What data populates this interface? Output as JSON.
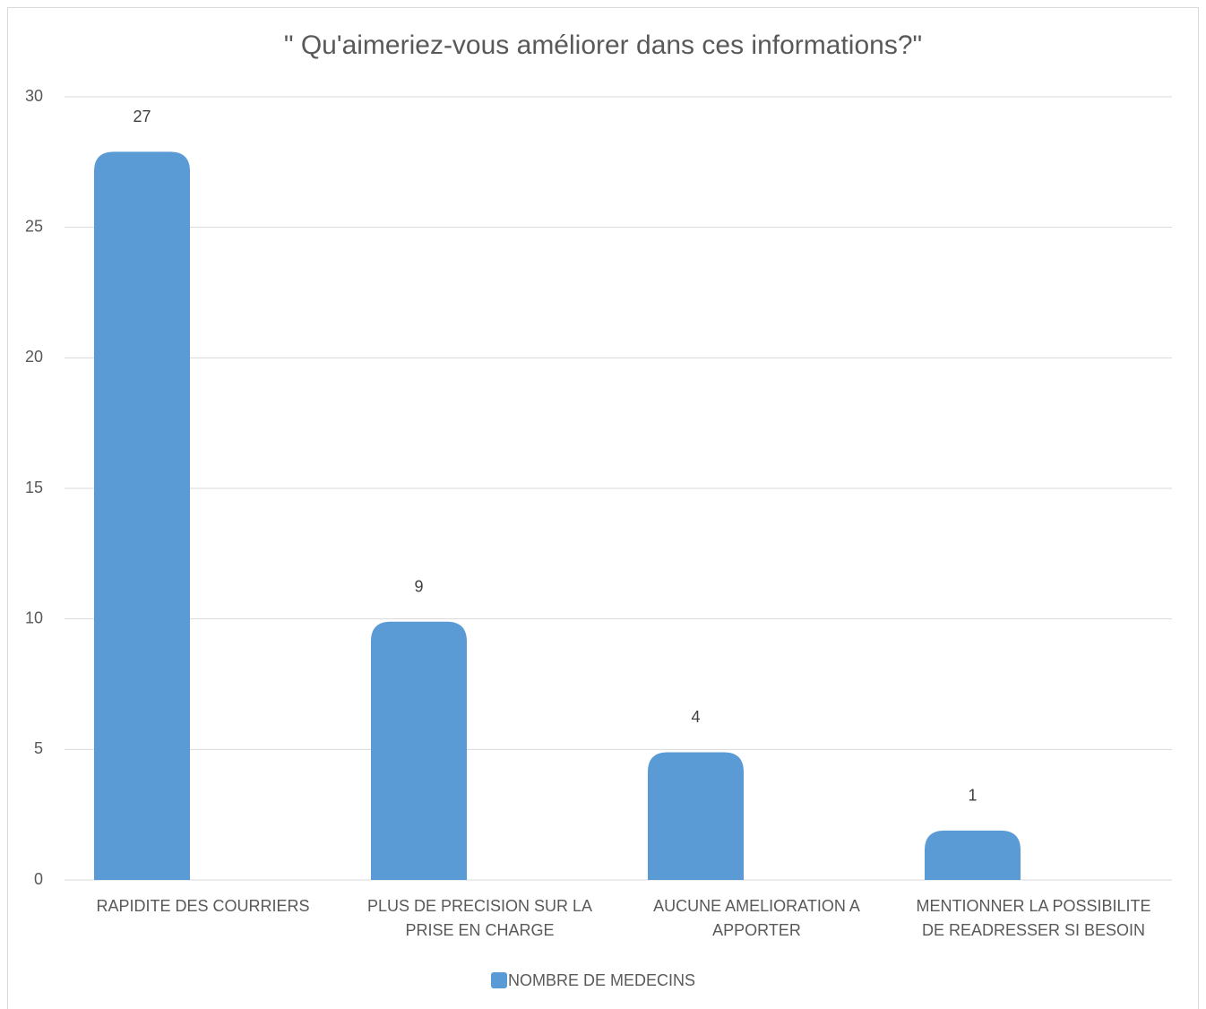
{
  "chart_data": {
    "type": "bar",
    "title": "\" Qu'aimeriez-vous améliorer dans ces informations?\"",
    "categories": [
      "RAPIDITE DES COURRIERS",
      "PLUS DE PRECISION SUR LA PRISE EN CHARGE",
      "AUCUNE AMELIORATION A APPORTER",
      "MENTIONNER LA POSSIBILITE DE READRESSER SI BESOIN"
    ],
    "series": [
      {
        "name": "NOMBRE DE MEDECINS",
        "color": "#5b9bd5",
        "values": [
          27,
          9,
          4,
          1
        ]
      }
    ],
    "ylim": [
      0,
      30
    ],
    "yticks": [
      0,
      5,
      10,
      15,
      20,
      25,
      30
    ],
    "grid": true,
    "legend": "bottom"
  }
}
